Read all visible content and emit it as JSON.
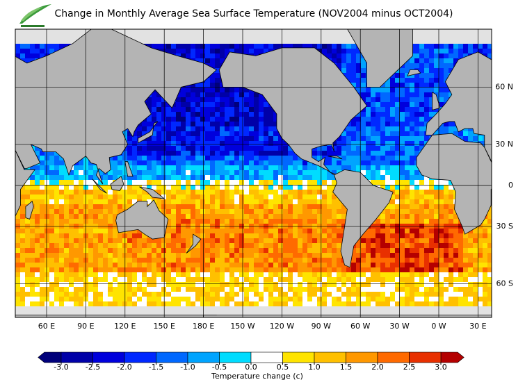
{
  "title": "Change in Monthly Average Sea Surface Temperature (NOV2004 minus OCT2004)",
  "map": {
    "longitude_ticks": [
      {
        "value": 60,
        "label": "60 E"
      },
      {
        "value": 90,
        "label": "90 E"
      },
      {
        "value": 120,
        "label": "120 E"
      },
      {
        "value": 150,
        "label": "150 E"
      },
      {
        "value": 180,
        "label": "180 E"
      },
      {
        "value": -150,
        "label": "150 W"
      },
      {
        "value": -120,
        "label": "120 W"
      },
      {
        "value": -90,
        "label": "90 W"
      },
      {
        "value": -60,
        "label": "60 W"
      },
      {
        "value": -30,
        "label": "30 W"
      },
      {
        "value": 0,
        "label": "0 W"
      },
      {
        "value": 30,
        "label": "30 E"
      }
    ],
    "latitude_ticks": [
      {
        "value": 60,
        "label": "60 N"
      },
      {
        "value": 30,
        "label": "30 N"
      },
      0,
      {
        "value": -30,
        "label": "30 S"
      },
      {
        "value": -60,
        "label": "60 S"
      }
    ]
  },
  "colorbar": {
    "title": "Temperature change  (c)",
    "ticks": [
      {
        "value": -3,
        "label": "-3.0"
      },
      {
        "value": -2.5,
        "label": "-2.5"
      },
      {
        "value": -2,
        "label": "-2.0"
      },
      {
        "value": -1.5,
        "label": "-1.5"
      },
      {
        "value": -1,
        "label": "-1.0"
      },
      {
        "value": -0.5,
        "label": "-0.5"
      },
      {
        "value": 0,
        "label": "0.0"
      },
      {
        "value": 0.5,
        "label": "0.5"
      },
      {
        "value": 1,
        "label": "1.0"
      },
      {
        "value": 1.5,
        "label": "1.5"
      },
      {
        "value": 2,
        "label": "2.0"
      },
      {
        "value": 2.5,
        "label": "2.5"
      },
      {
        "value": 3,
        "label": "3.0"
      }
    ],
    "colors": [
      "#00007a",
      "#0000a8",
      "#0000dc",
      "#0028ff",
      "#0068ff",
      "#00a4ff",
      "#00dcff",
      "#ffffff",
      "#ffe400",
      "#ffc000",
      "#ff9800",
      "#ff6a00",
      "#e83000",
      "#b40000"
    ]
  }
}
